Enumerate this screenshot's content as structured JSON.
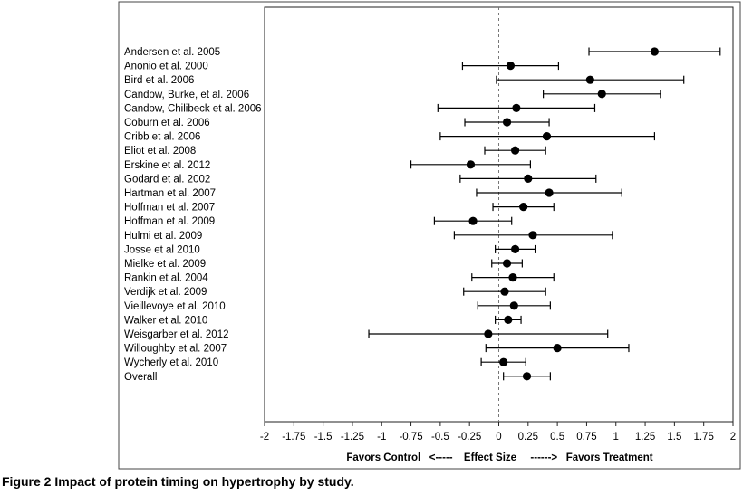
{
  "chart_data": {
    "type": "forest",
    "xlim": [
      -2,
      2
    ],
    "xticks": [
      "-2",
      "-1.75",
      "-1.5",
      "-1.25",
      "-1",
      "-0.75",
      "-0.5",
      "-0.25",
      "0",
      "0.25",
      "0.5",
      "0.75",
      "1",
      "1.25",
      "1.5",
      "1.75",
      "2"
    ],
    "reference_line": 0,
    "xlabel": {
      "left": "Favors Control   <-----",
      "center": "Effect Size",
      "right": "------>   Favors Treatment"
    },
    "studies": [
      {
        "label": "Andersen et al. 2005",
        "effect": 1.33,
        "lower": 0.77,
        "upper": 1.89
      },
      {
        "label": "Anonio et al. 2000",
        "effect": 0.1,
        "lower": -0.31,
        "upper": 0.51
      },
      {
        "label": "Bird et al. 2006",
        "effect": 0.78,
        "lower": -0.02,
        "upper": 1.58
      },
      {
        "label": "Candow, Burke, et al. 2006",
        "effect": 0.88,
        "lower": 0.38,
        "upper": 1.38
      },
      {
        "label": "Candow, Chilibeck et al. 2006",
        "effect": 0.15,
        "lower": -0.52,
        "upper": 0.82
      },
      {
        "label": "Coburn et al. 2006",
        "effect": 0.07,
        "lower": -0.29,
        "upper": 0.43
      },
      {
        "label": "Cribb et al. 2006",
        "effect": 0.41,
        "lower": -0.5,
        "upper": 1.33
      },
      {
        "label": "Eliot et al. 2008",
        "effect": 0.14,
        "lower": -0.12,
        "upper": 0.4
      },
      {
        "label": "Erskine et al. 2012",
        "effect": -0.24,
        "lower": -0.75,
        "upper": 0.27
      },
      {
        "label": "Godard et al.  2002",
        "effect": 0.25,
        "lower": -0.33,
        "upper": 0.83
      },
      {
        "label": "Hartman et al. 2007",
        "effect": 0.43,
        "lower": -0.19,
        "upper": 1.05
      },
      {
        "label": "Hoffman et al. 2007",
        "effect": 0.21,
        "lower": -0.05,
        "upper": 0.47
      },
      {
        "label": "Hoffman et al. 2009",
        "effect": -0.22,
        "lower": -0.55,
        "upper": 0.11
      },
      {
        "label": "Hulmi et al. 2009",
        "effect": 0.29,
        "lower": -0.38,
        "upper": 0.97
      },
      {
        "label": "Josse et al 2010",
        "effect": 0.14,
        "lower": -0.03,
        "upper": 0.31
      },
      {
        "label": "Mielke et al. 2009",
        "effect": 0.07,
        "lower": -0.06,
        "upper": 0.2
      },
      {
        "label": "Rankin et al. 2004",
        "effect": 0.12,
        "lower": -0.23,
        "upper": 0.47
      },
      {
        "label": "Verdijk et al. 2009",
        "effect": 0.05,
        "lower": -0.3,
        "upper": 0.4
      },
      {
        "label": "Vieillevoye et al. 2010",
        "effect": 0.13,
        "lower": -0.18,
        "upper": 0.44
      },
      {
        "label": "Walker et al. 2010",
        "effect": 0.08,
        "lower": -0.03,
        "upper": 0.19
      },
      {
        "label": "Weisgarber et al. 2012",
        "effect": -0.09,
        "lower": -1.11,
        "upper": 0.93
      },
      {
        "label": "Willoughby et al. 2007",
        "effect": 0.5,
        "lower": -0.11,
        "upper": 1.11
      },
      {
        "label": "Wycherly et al. 2010",
        "effect": 0.04,
        "lower": -0.15,
        "upper": 0.23
      },
      {
        "label": "Overall",
        "effect": 0.24,
        "lower": 0.04,
        "upper": 0.44
      }
    ]
  },
  "caption": {
    "number": "Figure 2",
    "text": "Impact of protein timing on hypertrophy by study."
  }
}
